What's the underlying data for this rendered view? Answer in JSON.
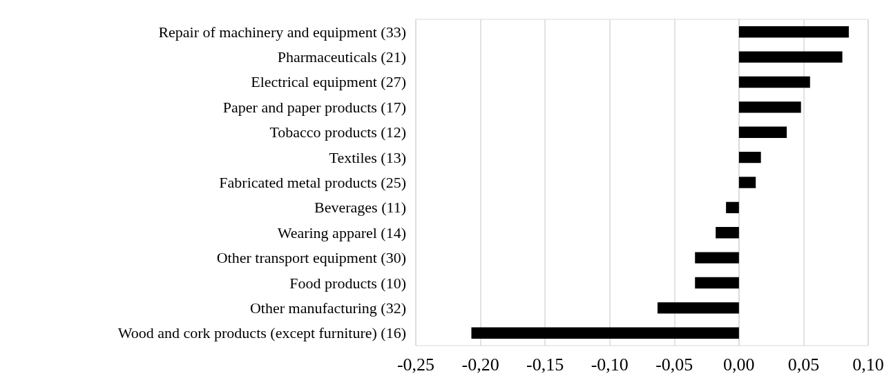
{
  "chart_data": {
    "type": "bar",
    "orientation": "horizontal",
    "categories": [
      "Repair of machinery and equipment (33)",
      "Pharmaceuticals (21)",
      "Electrical equipment (27)",
      "Paper and paper products (17)",
      "Tobacco products (12)",
      "Textiles (13)",
      "Fabricated metal products (25)",
      "Beverages (11)",
      "Wearing apparel (14)",
      "Other transport equipment (30)",
      "Food products (10)",
      "Other manufacturing (32)",
      "Wood and cork products (except furniture) (16)"
    ],
    "values": [
      0.085,
      0.08,
      0.055,
      0.048,
      0.037,
      0.017,
      0.013,
      -0.01,
      -0.018,
      -0.034,
      -0.034,
      -0.063,
      -0.207
    ],
    "color": "#000000",
    "xlim": [
      -0.25,
      0.1
    ],
    "xticks": [
      {
        "value": -0.25,
        "label": "-0,25"
      },
      {
        "value": -0.2,
        "label": "-0,20"
      },
      {
        "value": -0.15,
        "label": "-0,15"
      },
      {
        "value": -0.1,
        "label": "-0,10"
      },
      {
        "value": -0.05,
        "label": "-0,05"
      },
      {
        "value": 0,
        "label": "0,00"
      },
      {
        "value": 0.05,
        "label": "0,05"
      },
      {
        "value": 0.1,
        "label": "0,10"
      }
    ],
    "grid": "x"
  }
}
